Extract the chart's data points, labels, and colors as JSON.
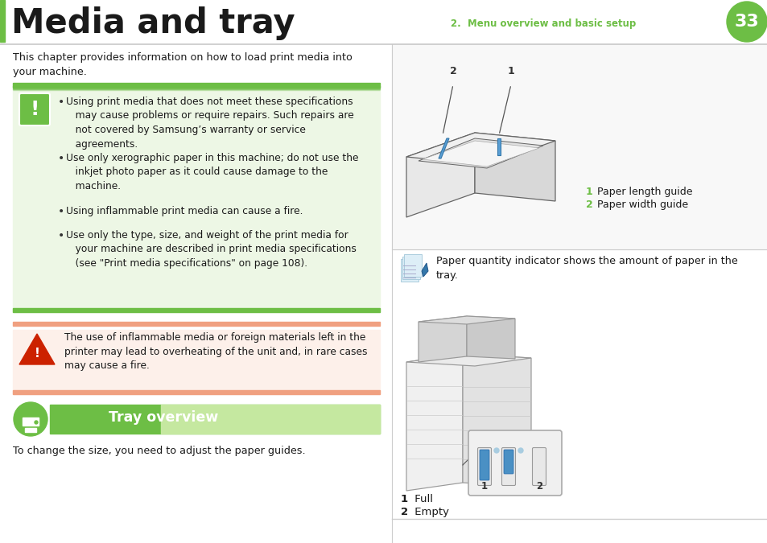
{
  "title": "Media and tray",
  "title_color": "#1a1a1a",
  "title_fontsize": 30,
  "header_right_text": "2.  Menu overview and basic setup",
  "header_right_color": "#6dbe45",
  "page_number": "33",
  "page_circle_color": "#6dbe45",
  "background_color": "#ffffff",
  "green_color": "#6dbe45",
  "header_line_color": "#c8c8c8",
  "intro_text": "This chapter provides information on how to load print media into\nyour machine.",
  "caution_bg": "#edf7e5",
  "caution_border": "#6dbe45",
  "warning_bg": "#fdf0ea",
  "warning_border": "#f0a080",
  "warning_icon_color": "#cc2200",
  "tray_bg_dark": "#6dbe45",
  "tray_bg_light": "#c5e8a0",
  "tray_text": "Tray overview",
  "bottom_text": "To change the size, you need to adjust the paper guides.",
  "paper_length_label": " Paper length guide",
  "paper_width_label": " Paper width guide",
  "paper_qty_text": "Paper quantity indicator shows the amount of paper in the\ntray.",
  "full_label": " Full",
  "empty_label": " Empty",
  "sep_color": "#cccccc",
  "diagram_line_color": "#888888",
  "diagram_light": "#dddddd",
  "blue_color": "#4a90c4",
  "light_blue": "#a8cce0",
  "note_blue": "#5b9ec9"
}
